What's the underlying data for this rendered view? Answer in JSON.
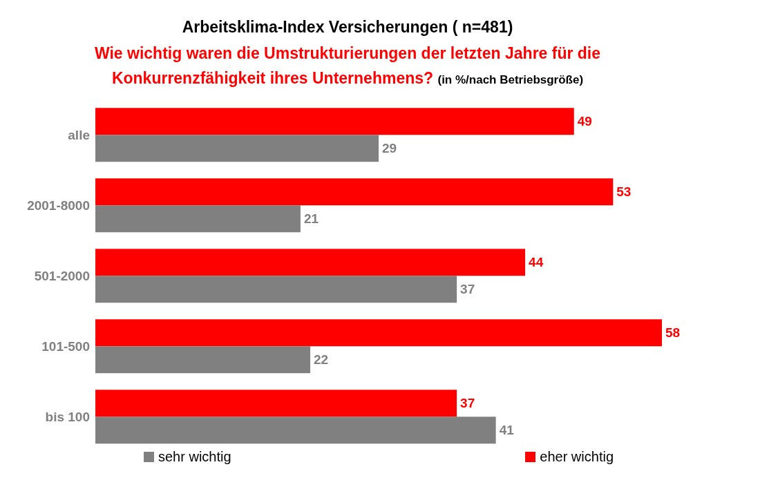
{
  "chart_data": {
    "type": "bar",
    "orientation": "horizontal",
    "title": "Arbeitsklima-Index Versicherungen ( n=481)",
    "subtitle": "Wie wichtig waren die Umstrukturierungen der letzten Jahre für die Konkurrenzfähigkeit ihres Unternehmens?",
    "annotations": [
      "(in %/nach Betriebsgröße)"
    ],
    "categories": [
      "alle",
      "2001-8000",
      "501-2000",
      "101-500",
      "bis 100"
    ],
    "series": [
      {
        "name": "eher wichtig",
        "color": "#ff0000",
        "values": [
          49,
          53,
          44,
          58,
          37
        ]
      },
      {
        "name": "sehr wichtig",
        "color": "#808080",
        "values": [
          29,
          21,
          37,
          22,
          41
        ]
      }
    ],
    "data_labels": true,
    "legend": "bottom"
  }
}
